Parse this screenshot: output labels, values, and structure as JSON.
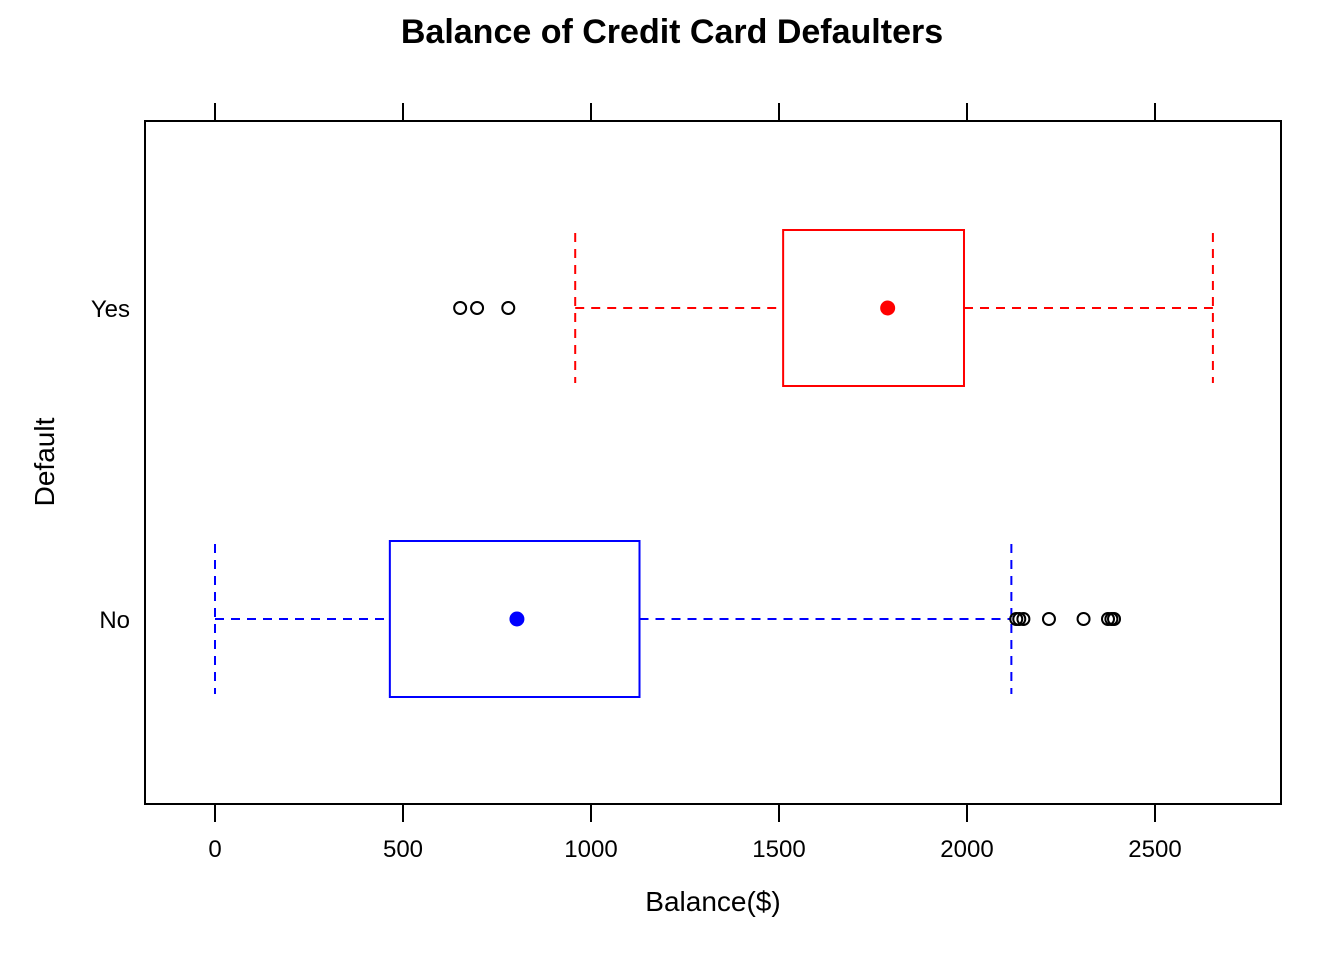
{
  "chart_data": {
    "type": "boxplot",
    "title": "Balance of Credit Card Defaulters",
    "xlabel": "Balance($)",
    "ylabel": "Default",
    "xlim": [
      -180,
      2820
    ],
    "x_ticks": [
      0,
      500,
      1000,
      1500,
      2000,
      2500
    ],
    "x_tick_labels": [
      "0",
      "500",
      "1000",
      "1500",
      "2000",
      "2500"
    ],
    "orientation": "horizontal",
    "grid": false,
    "groups": [
      {
        "category": "No",
        "color": "#0000ff",
        "whisker_low": 0,
        "q1": 465,
        "median": 803,
        "q3": 1129,
        "whisker_high": 2118,
        "outliers": [
          2131,
          2139,
          2150,
          2218,
          2310,
          2375,
          2384,
          2391
        ]
      },
      {
        "category": "Yes",
        "color": "#ff0000",
        "whisker_low": 958,
        "q1": 1511,
        "median": 1789,
        "q3": 1992,
        "whisker_high": 2654,
        "outliers": [
          652,
          697,
          780
        ]
      }
    ]
  }
}
